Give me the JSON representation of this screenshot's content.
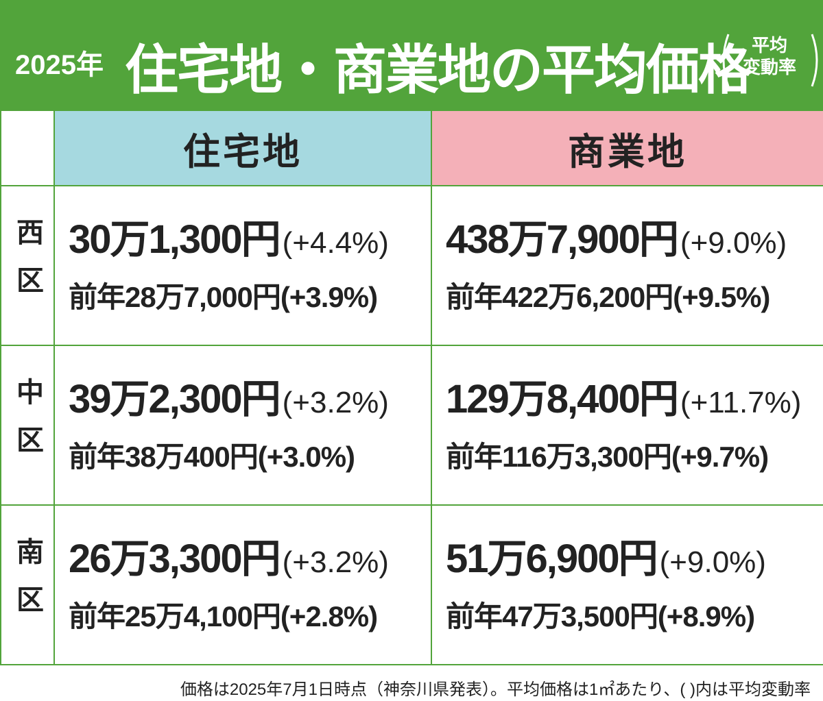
{
  "header": {
    "year": "2025年",
    "title": "住宅地・商業地の平均価格",
    "note": [
      "平均",
      "変動率"
    ]
  },
  "table": {
    "columns": [
      "住宅地",
      "商業地"
    ],
    "rows": [
      {
        "district": "西区",
        "cells": [
          {
            "current": "30万1,300円",
            "change": "(+4.4%)",
            "previous": "前年28万7,000円(+3.9%)"
          },
          {
            "current": "438万7,900円",
            "change": "(+9.0%)",
            "previous": "前年422万6,200円(+9.5%)"
          }
        ]
      },
      {
        "district": "中区",
        "cells": [
          {
            "current": "39万2,300円",
            "change": "(+3.2%)",
            "previous": "前年38万400円(+3.0%)"
          },
          {
            "current": "129万8,400円",
            "change": "(+11.7%)",
            "previous": "前年116万3,300円(+9.7%)"
          }
        ]
      },
      {
        "district": "南区",
        "cells": [
          {
            "current": "26万3,300円",
            "change": "(+3.2%)",
            "previous": "前年25万4,100円(+2.8%)"
          },
          {
            "current": "51万6,900円",
            "change": "(+9.0%)",
            "previous": "前年47万3,500円(+8.9%)"
          }
        ]
      }
    ]
  },
  "footer": "価格は2025年7月1日時点（神奈川県発表）。平均価格は1㎡あたり、( )内は平均変動率"
}
